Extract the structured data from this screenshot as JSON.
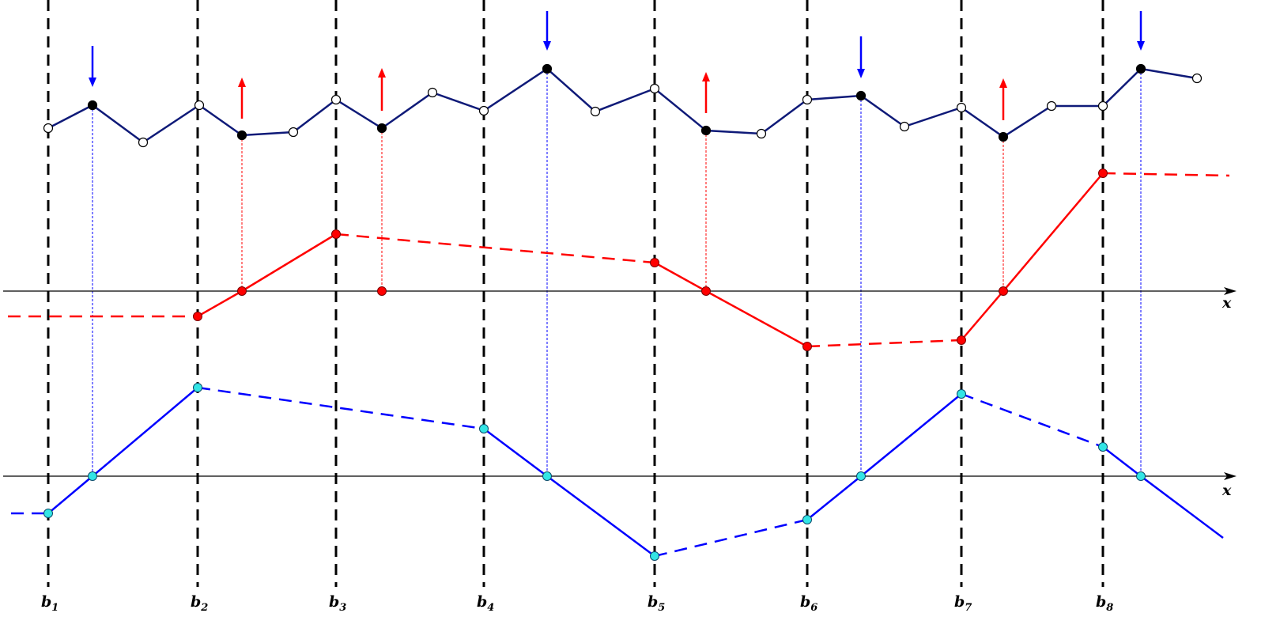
{
  "diagram": {
    "boundaries": [
      {
        "name": "b",
        "sub": "1"
      },
      {
        "name": "b",
        "sub": "2"
      },
      {
        "name": "b",
        "sub": "3"
      },
      {
        "name": "b",
        "sub": "4"
      },
      {
        "name": "b",
        "sub": "5"
      },
      {
        "name": "b",
        "sub": "6"
      },
      {
        "name": "b",
        "sub": "7"
      },
      {
        "name": "b",
        "sub": "8"
      }
    ],
    "axes": [
      {
        "label": "x"
      },
      {
        "label": "x"
      }
    ],
    "colors": {
      "signal": "#0f1a78",
      "red": "#ff0000",
      "blue": "#0000ff",
      "cyan": "#33e5e5",
      "black": "#000000"
    }
  }
}
